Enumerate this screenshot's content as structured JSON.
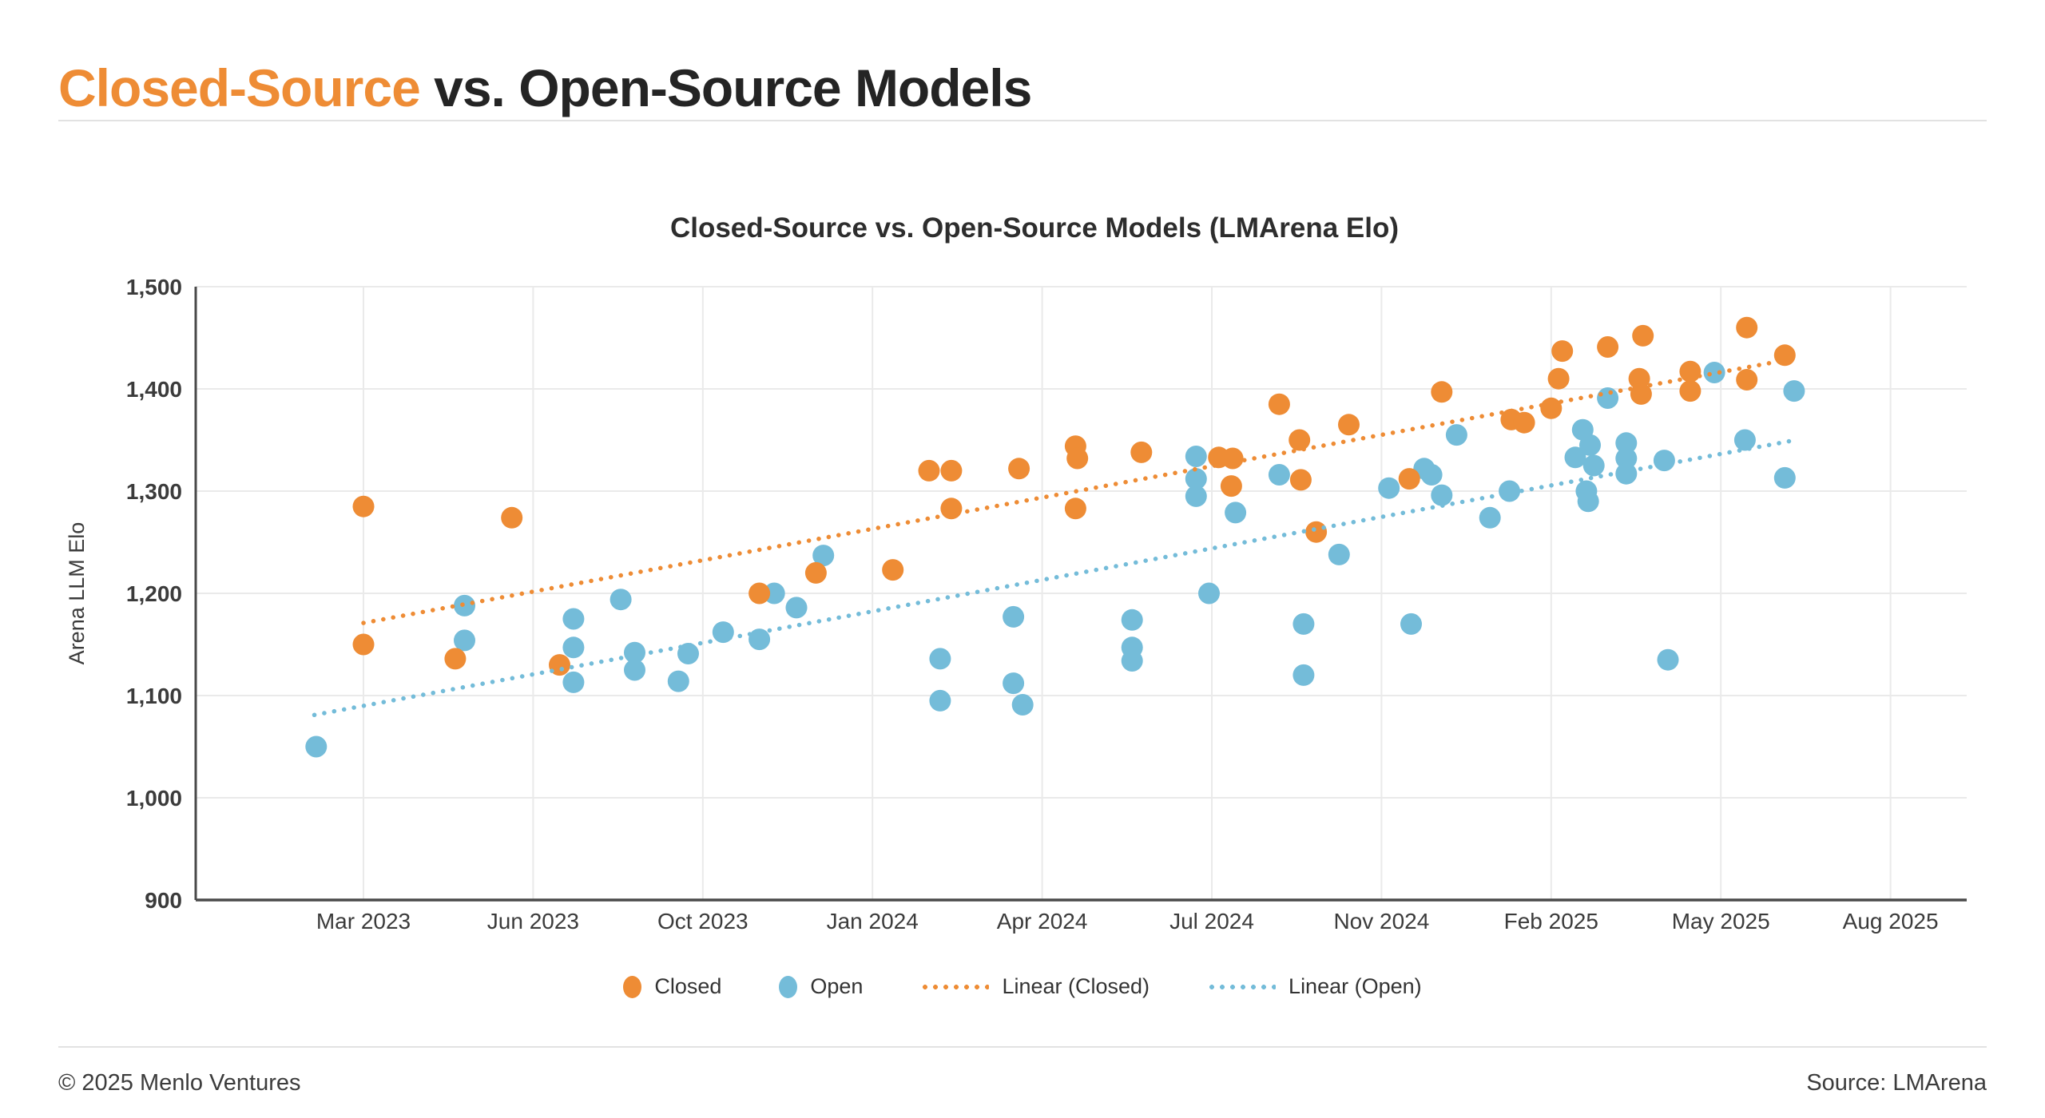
{
  "page": {
    "title": {
      "accent": "Closed-Source",
      "rest": " vs. Open-Source Models"
    },
    "footer_left": "© 2025 Menlo Ventures",
    "footer_right": "Source: LMArena"
  },
  "colors": {
    "closed": "#EE8C35",
    "open": "#74BCD9",
    "grid": "#EAEAEA",
    "axis": "#4A4A4A",
    "tick_text": "#3B3B3B",
    "title_accent": "#EE8C35",
    "title_dark": "#242424"
  },
  "chart_data": {
    "type": "scatter",
    "title": "Closed-Source vs. Open-Source Models (LMArena Elo)",
    "xlabel": "",
    "ylabel": "Arena LLM Elo",
    "ylim": [
      900,
      1500
    ],
    "ytick_step": 100,
    "grid": true,
    "legend_position": "bottom",
    "x_tick_labels": [
      "Mar 2023",
      "Jun 2023",
      "Oct 2023",
      "Jan 2024",
      "Apr 2024",
      "Jul 2024",
      "Nov 2024",
      "Feb 2025",
      "May 2025",
      "Aug 2025"
    ],
    "x_tick_months": [
      "2023-03",
      "2023-06",
      "2023-10",
      "2024-01",
      "2024-04",
      "2024-07",
      "2024-11",
      "2025-02",
      "2025-05",
      "2025-08"
    ],
    "legend": [
      "Closed",
      "Open",
      "Linear (Closed)",
      "Linear (Open)"
    ],
    "series": [
      {
        "name": "Closed",
        "color_key": "closed",
        "points": [
          [
            "2023-03-01",
            1285
          ],
          [
            "2023-03-01",
            1150
          ],
          [
            "2023-04-20",
            1136
          ],
          [
            "2023-05-20",
            1274
          ],
          [
            "2023-06-20",
            1130
          ],
          [
            "2023-11-01",
            1200
          ],
          [
            "2023-12-01",
            1220
          ],
          [
            "2024-01-12",
            1223
          ],
          [
            "2024-02-01",
            1320
          ],
          [
            "2024-02-13",
            1320
          ],
          [
            "2024-02-13",
            1283
          ],
          [
            "2024-03-19",
            1322
          ],
          [
            "2024-04-19",
            1344
          ],
          [
            "2024-04-20",
            1332
          ],
          [
            "2024-04-19",
            1283
          ],
          [
            "2024-05-24",
            1338
          ],
          [
            "2024-07-06",
            1333
          ],
          [
            "2024-07-16",
            1332
          ],
          [
            "2024-07-15",
            1305
          ],
          [
            "2024-08-19",
            1385
          ],
          [
            "2024-09-03",
            1350
          ],
          [
            "2024-09-04",
            1311
          ],
          [
            "2024-09-15",
            1260
          ],
          [
            "2024-10-08",
            1365
          ],
          [
            "2024-11-16",
            1312
          ],
          [
            "2024-12-03",
            1397
          ],
          [
            "2025-01-10",
            1370
          ],
          [
            "2025-01-17",
            1367
          ],
          [
            "2025-02-01",
            1381
          ],
          [
            "2025-02-05",
            1410
          ],
          [
            "2025-02-07",
            1437
          ],
          [
            "2025-03-01",
            1441
          ],
          [
            "2025-03-18",
            1410
          ],
          [
            "2025-03-19",
            1395
          ],
          [
            "2025-03-20",
            1452
          ],
          [
            "2025-04-15",
            1417
          ],
          [
            "2025-04-15",
            1398
          ],
          [
            "2025-05-15",
            1460
          ],
          [
            "2025-05-15",
            1409
          ],
          [
            "2025-06-05",
            1433
          ]
        ]
      },
      {
        "name": "Open",
        "color_key": "open",
        "points": [
          [
            "2023-02-06",
            1050
          ],
          [
            "2023-04-25",
            1188
          ],
          [
            "2023-04-25",
            1154
          ],
          [
            "2023-06-30",
            1175
          ],
          [
            "2023-06-30",
            1147
          ],
          [
            "2023-06-30",
            1113
          ],
          [
            "2023-08-03",
            1194
          ],
          [
            "2023-08-13",
            1142
          ],
          [
            "2023-08-13",
            1125
          ],
          [
            "2023-09-14",
            1114
          ],
          [
            "2023-09-21",
            1141
          ],
          [
            "2023-10-12",
            1162
          ],
          [
            "2023-11-01",
            1155
          ],
          [
            "2023-11-09",
            1200
          ],
          [
            "2023-11-21",
            1186
          ],
          [
            "2023-12-05",
            1237
          ],
          [
            "2024-02-07",
            1136
          ],
          [
            "2024-02-07",
            1095
          ],
          [
            "2024-03-16",
            1177
          ],
          [
            "2024-03-16",
            1112
          ],
          [
            "2024-03-21",
            1091
          ],
          [
            "2024-05-19",
            1174
          ],
          [
            "2024-05-19",
            1147
          ],
          [
            "2024-05-19",
            1134
          ],
          [
            "2024-06-23",
            1334
          ],
          [
            "2024-06-23",
            1312
          ],
          [
            "2024-06-23",
            1295
          ],
          [
            "2024-06-30",
            1200
          ],
          [
            "2024-07-18",
            1279
          ],
          [
            "2024-08-19",
            1316
          ],
          [
            "2024-09-06",
            1170
          ],
          [
            "2024-09-06",
            1120
          ],
          [
            "2024-10-01",
            1238
          ],
          [
            "2024-11-05",
            1303
          ],
          [
            "2024-11-17",
            1170
          ],
          [
            "2024-11-24",
            1322
          ],
          [
            "2024-11-28",
            1316
          ],
          [
            "2024-12-03",
            1296
          ],
          [
            "2024-12-11",
            1355
          ],
          [
            "2024-12-29",
            1274
          ],
          [
            "2025-01-09",
            1300
          ],
          [
            "2025-02-14",
            1333
          ],
          [
            "2025-02-18",
            1360
          ],
          [
            "2025-02-20",
            1300
          ],
          [
            "2025-02-21",
            1290
          ],
          [
            "2025-02-22",
            1345
          ],
          [
            "2025-02-24",
            1325
          ],
          [
            "2025-03-01",
            1391
          ],
          [
            "2025-03-11",
            1347
          ],
          [
            "2025-03-11",
            1332
          ],
          [
            "2025-03-11",
            1317
          ],
          [
            "2025-04-01",
            1330
          ],
          [
            "2025-04-03",
            1135
          ],
          [
            "2025-04-28",
            1416
          ],
          [
            "2025-05-14",
            1350
          ],
          [
            "2025-06-05",
            1313
          ],
          [
            "2025-06-10",
            1398
          ]
        ]
      }
    ],
    "trendlines": [
      {
        "name": "Linear (Closed)",
        "color_key": "closed",
        "start": [
          "2023-03-01",
          1171
        ],
        "end": [
          "2025-06-05",
          1428
        ]
      },
      {
        "name": "Linear (Open)",
        "color_key": "open",
        "start": [
          "2023-02-05",
          1081
        ],
        "end": [
          "2025-06-08",
          1349
        ]
      }
    ]
  }
}
